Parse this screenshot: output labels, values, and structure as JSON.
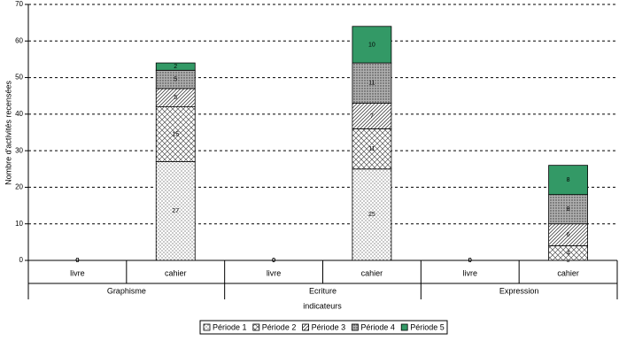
{
  "chart_data": {
    "type": "stacked-bar",
    "categories": [
      "livre",
      "cahier",
      "livre",
      "cahier",
      "livre",
      "cahier"
    ],
    "groups": [
      "Graphisme",
      "Ecriture",
      "Expression"
    ],
    "y_label": "Nombre d'activités recensées",
    "x_label": "indicateurs",
    "ylim": [
      0,
      70
    ],
    "yticks": [
      0,
      10,
      20,
      30,
      40,
      50,
      60,
      70
    ],
    "grid": true,
    "legend": "bottom",
    "series": [
      {
        "name": "Période 1",
        "color": "#ffffff",
        "pattern": "dots",
        "values": [
          0,
          27,
          0,
          25,
          0,
          0
        ]
      },
      {
        "name": "Période 2",
        "color": "#ffffff",
        "pattern": "crosshatch",
        "values": [
          0,
          15,
          0,
          11,
          0,
          4
        ]
      },
      {
        "name": "Période 3",
        "color": "#ffffff",
        "pattern": "diagonal",
        "values": [
          0,
          5,
          0,
          7,
          0,
          6
        ]
      },
      {
        "name": "Période 4",
        "color": "#b0b0b0",
        "pattern": "dense",
        "values": [
          0,
          5,
          0,
          11,
          0,
          8
        ]
      },
      {
        "name": "Période 5",
        "color": "#339966",
        "pattern": "solid",
        "values": [
          0,
          2,
          0,
          10,
          0,
          8
        ]
      }
    ]
  }
}
